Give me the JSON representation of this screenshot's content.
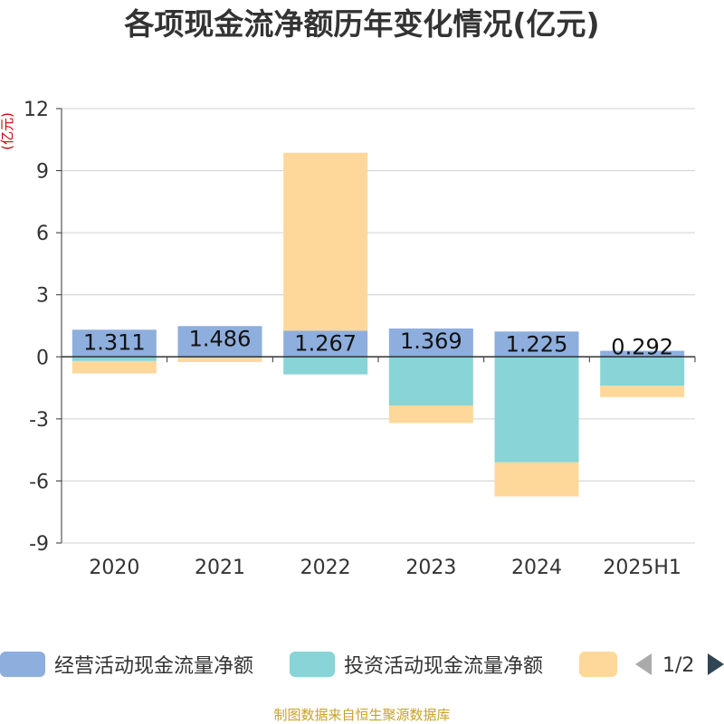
{
  "chart_data": {
    "type": "bar",
    "stacked": true,
    "title": "各项现金流净额历年变化情况(亿元)",
    "ylabel": "(亿元)",
    "xlabel": "",
    "categories": [
      "2020",
      "2021",
      "2022",
      "2023",
      "2024",
      "2025H1"
    ],
    "ylim": [
      -9,
      12
    ],
    "yticks": [
      12,
      9,
      6,
      3,
      0,
      -3,
      -6,
      -9
    ],
    "grid": true,
    "series": [
      {
        "name": "经营活动现金流量净额",
        "color": "#8eaedd",
        "values": [
          1.311,
          1.486,
          1.267,
          1.369,
          1.225,
          0.292
        ],
        "labels": [
          "1.311",
          "1.486",
          "1.267",
          "1.369",
          "1.225",
          "0.292"
        ]
      },
      {
        "name": "投资活动现金流量净额",
        "color": "#88d4d6",
        "values": [
          -0.2,
          -0.05,
          -0.85,
          -2.35,
          -5.1,
          -1.4
        ]
      },
      {
        "name": "",
        "color": "#fed89b",
        "values": [
          -0.6,
          -0.2,
          8.6,
          -0.85,
          -1.65,
          -0.55
        ]
      }
    ],
    "legend": {
      "position": "bottom",
      "page": "1/2"
    }
  },
  "source": "制图数据来自恒生聚源数据库",
  "icons": {
    "prev": "arrow-left-icon",
    "next": "arrow-right-icon"
  }
}
